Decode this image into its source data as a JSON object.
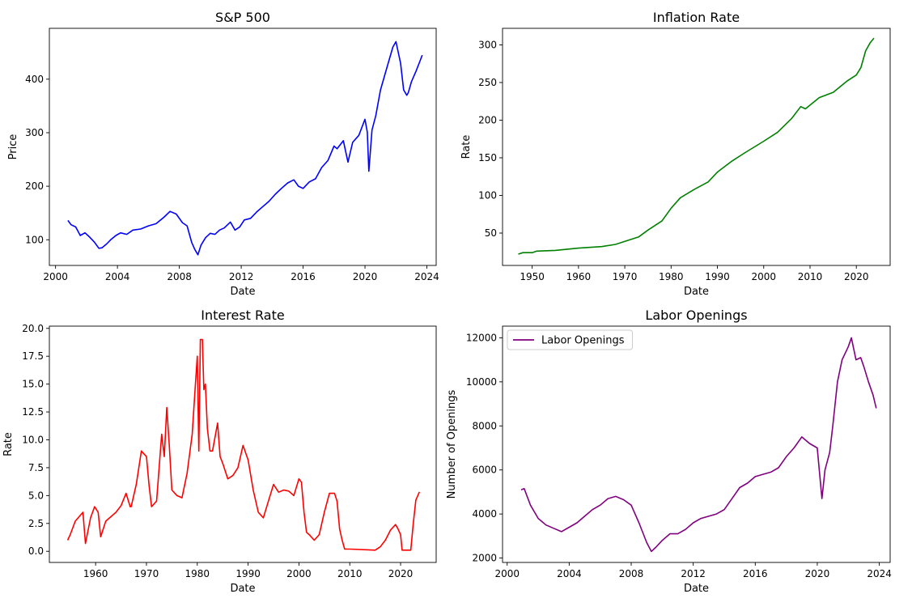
{
  "chart_data": [
    {
      "type": "line",
      "title": "S&P 500",
      "xlabel": "Date",
      "ylabel": "Price",
      "xlim": [
        1999.6,
        2024.6
      ],
      "ylim": [
        52,
        495
      ],
      "xticks": [
        2000,
        2004,
        2008,
        2012,
        2016,
        2020,
        2024
      ],
      "xtick_labels": [
        "2000",
        "2004",
        "2008",
        "2012",
        "2016",
        "2020",
        "2024"
      ],
      "yticks": [
        100,
        200,
        300,
        400
      ],
      "ytick_labels": [
        "100",
        "200",
        "300",
        "400"
      ],
      "grid": false,
      "legend": null,
      "series": [
        {
          "color": "#0000ff",
          "x": [
            2000.8,
            2001.0,
            2001.3,
            2001.6,
            2001.9,
            2002.2,
            2002.5,
            2002.8,
            2003.0,
            2003.3,
            2003.6,
            2003.9,
            2004.2,
            2004.6,
            2005.0,
            2005.5,
            2006.0,
            2006.5,
            2007.0,
            2007.4,
            2007.8,
            2008.2,
            2008.5,
            2008.8,
            2009.0,
            2009.2,
            2009.4,
            2009.7,
            2010.0,
            2010.3,
            2010.6,
            2010.9,
            2011.3,
            2011.6,
            2011.9,
            2012.2,
            2012.6,
            2013.0,
            2013.4,
            2013.8,
            2014.2,
            2014.6,
            2015.0,
            2015.4,
            2015.7,
            2016.0,
            2016.4,
            2016.8,
            2017.2,
            2017.6,
            2018.0,
            2018.2,
            2018.6,
            2018.9,
            2019.2,
            2019.6,
            2020.0,
            2020.15,
            2020.25,
            2020.45,
            2020.7,
            2021.0,
            2021.4,
            2021.8,
            2022.0,
            2022.3,
            2022.5,
            2022.7,
            2022.8,
            2023.0,
            2023.3,
            2023.5,
            2023.7
          ],
          "y": [
            136,
            128,
            124,
            108,
            113,
            105,
            96,
            84,
            85,
            92,
            101,
            108,
            113,
            110,
            118,
            120,
            126,
            130,
            142,
            153,
            148,
            132,
            126,
            95,
            82,
            72,
            90,
            104,
            112,
            110,
            118,
            122,
            133,
            118,
            124,
            137,
            140,
            152,
            162,
            172,
            185,
            196,
            206,
            212,
            200,
            196,
            208,
            214,
            235,
            248,
            275,
            270,
            285,
            245,
            282,
            295,
            325,
            301,
            228,
            305,
            332,
            380,
            420,
            460,
            470,
            430,
            380,
            370,
            375,
            395,
            415,
            430,
            445
          ]
        }
      ]
    },
    {
      "type": "line",
      "title": "Inflation Rate",
      "xlabel": "Date",
      "ylabel": "Rate",
      "xlim": [
        1943.6,
        2027.3
      ],
      "ylim": [
        7,
        322
      ],
      "xticks": [
        1950,
        1960,
        1970,
        1980,
        1990,
        2000,
        2010,
        2020
      ],
      "xtick_labels": [
        "1950",
        "1960",
        "1970",
        "1980",
        "1990",
        "2000",
        "2010",
        "2020"
      ],
      "yticks": [
        50,
        100,
        150,
        200,
        250,
        300
      ],
      "ytick_labels": [
        "50",
        "100",
        "150",
        "200",
        "250",
        "300"
      ],
      "grid": false,
      "legend": null,
      "series": [
        {
          "color": "#008000",
          "x": [
            1947,
            1948,
            1949,
            1950,
            1951,
            1955,
            1960,
            1965,
            1968,
            1970,
            1973,
            1975,
            1978,
            1980,
            1982,
            1985,
            1988,
            1990,
            1993,
            1996,
            2000,
            2003,
            2006,
            2008,
            2009,
            2012,
            2015,
            2018,
            2020,
            2021,
            2022,
            2023,
            2023.8
          ],
          "y": [
            22,
            24,
            24,
            24,
            26,
            27,
            30,
            32,
            35,
            39,
            45,
            54,
            66,
            83,
            97,
            108,
            118,
            131,
            145,
            157,
            172,
            184,
            202,
            218,
            215,
            230,
            237,
            252,
            260,
            270,
            292,
            303,
            309
          ]
        }
      ]
    },
    {
      "type": "line",
      "title": "Interest Rate",
      "xlabel": "Date",
      "ylabel": "Rate",
      "xlim": [
        1950.9,
        2027.0
      ],
      "ylim": [
        -1.0,
        20.2
      ],
      "xticks": [
        1960,
        1970,
        1980,
        1990,
        2000,
        2010,
        2020
      ],
      "xtick_labels": [
        "1960",
        "1970",
        "1980",
        "1990",
        "2000",
        "2010",
        "2020"
      ],
      "yticks": [
        0.0,
        2.5,
        5.0,
        7.5,
        10.0,
        12.5,
        15.0,
        17.5,
        20.0
      ],
      "ytick_labels": [
        "0.0",
        "2.5",
        "5.0",
        "7.5",
        "10.0",
        "12.5",
        "15.0",
        "17.5",
        "20.0"
      ],
      "grid": false,
      "legend": null,
      "series": [
        {
          "color": "#ff0000",
          "x": [
            1954.5,
            1955,
            1956,
            1957.5,
            1958,
            1959,
            1959.8,
            1960.5,
            1961,
            1962,
            1963,
            1964,
            1965,
            1966,
            1966.8,
            1967,
            1968,
            1969,
            1970,
            1970.5,
            1971,
            1972,
            1973,
            1973.5,
            1974,
            1974.5,
            1975,
            1976,
            1977,
            1978,
            1979,
            1979.5,
            1980,
            1980.3,
            1980.6,
            1981,
            1981.3,
            1981.6,
            1982,
            1982.5,
            1983,
            1984,
            1984.5,
            1985,
            1986,
            1987,
            1988,
            1989,
            1990,
            1991,
            1992,
            1993,
            1994,
            1995,
            1996,
            1997,
            1998,
            1999,
            2000,
            2000.5,
            2001,
            2001.5,
            2002,
            2003,
            2004,
            2005,
            2006,
            2007,
            2007.5,
            2008,
            2008.5,
            2009,
            2010,
            2015,
            2016,
            2017,
            2018,
            2019,
            2019.5,
            2020,
            2020.3,
            2021,
            2022,
            2022.5,
            2023,
            2023.7
          ],
          "y": [
            1.0,
            1.5,
            2.7,
            3.5,
            0.7,
            3.0,
            4.0,
            3.5,
            1.3,
            2.7,
            3.1,
            3.5,
            4.1,
            5.2,
            4.0,
            4.0,
            6.0,
            9.0,
            8.5,
            6.0,
            4.0,
            4.5,
            10.5,
            8.5,
            12.9,
            9.5,
            5.5,
            5.0,
            4.8,
            7.0,
            10.5,
            14.0,
            17.5,
            9.0,
            19.0,
            19.0,
            14.5,
            15.0,
            11.0,
            9.0,
            9.0,
            11.5,
            8.5,
            7.9,
            6.5,
            6.8,
            7.5,
            9.5,
            8.2,
            5.5,
            3.5,
            3.0,
            4.5,
            6.0,
            5.3,
            5.5,
            5.4,
            5.0,
            6.5,
            6.2,
            3.5,
            1.7,
            1.5,
            1.0,
            1.5,
            3.5,
            5.2,
            5.2,
            4.5,
            2.0,
            1.0,
            0.2,
            0.2,
            0.1,
            0.4,
            1.0,
            1.9,
            2.4,
            2.0,
            1.5,
            0.1,
            0.1,
            0.1,
            2.5,
            4.6,
            5.33
          ]
        }
      ]
    },
    {
      "type": "line",
      "title": "Labor Openings",
      "xlabel": "Date",
      "ylabel": "Number of Openings",
      "xlim": [
        1999.7,
        2024.7
      ],
      "ylim": [
        1800,
        12530
      ],
      "xticks": [
        2000,
        2004,
        2008,
        2012,
        2016,
        2020,
        2024
      ],
      "xtick_labels": [
        "2000",
        "2004",
        "2008",
        "2012",
        "2016",
        "2020",
        "2024"
      ],
      "yticks": [
        2000,
        4000,
        6000,
        8000,
        10000,
        12000
      ],
      "ytick_labels": [
        "2000",
        "4000",
        "6000",
        "8000",
        "10000",
        "12000"
      ],
      "grid": false,
      "legend": "top-left",
      "series": [
        {
          "name": "Labor Openings",
          "color": "#800080",
          "x": [
            2000.9,
            2001.1,
            2001.5,
            2002.0,
            2002.5,
            2003.0,
            2003.5,
            2004.0,
            2004.5,
            2005.0,
            2005.5,
            2006.0,
            2006.5,
            2007.0,
            2007.5,
            2008.0,
            2008.5,
            2009.0,
            2009.3,
            2009.6,
            2010.0,
            2010.5,
            2011.0,
            2011.5,
            2012.0,
            2012.5,
            2013.0,
            2013.5,
            2014.0,
            2014.5,
            2015.0,
            2015.5,
            2016.0,
            2016.5,
            2017.0,
            2017.5,
            2018.0,
            2018.5,
            2019.0,
            2019.5,
            2020.0,
            2020.3,
            2020.5,
            2020.8,
            2021.0,
            2021.3,
            2021.6,
            2022.0,
            2022.2,
            2022.5,
            2022.8,
            2023.0,
            2023.3,
            2023.6,
            2023.8
          ],
          "y": [
            5100,
            5150,
            4400,
            3800,
            3500,
            3350,
            3200,
            3400,
            3600,
            3900,
            4200,
            4400,
            4700,
            4800,
            4650,
            4400,
            3600,
            2700,
            2300,
            2500,
            2800,
            3100,
            3100,
            3300,
            3600,
            3800,
            3900,
            4000,
            4200,
            4700,
            5200,
            5400,
            5700,
            5800,
            5900,
            6100,
            6600,
            7000,
            7500,
            7200,
            7000,
            4700,
            6000,
            6800,
            8000,
            10000,
            11000,
            11600,
            12000,
            11000,
            11100,
            10700,
            10000,
            9400,
            8800
          ]
        }
      ]
    }
  ]
}
